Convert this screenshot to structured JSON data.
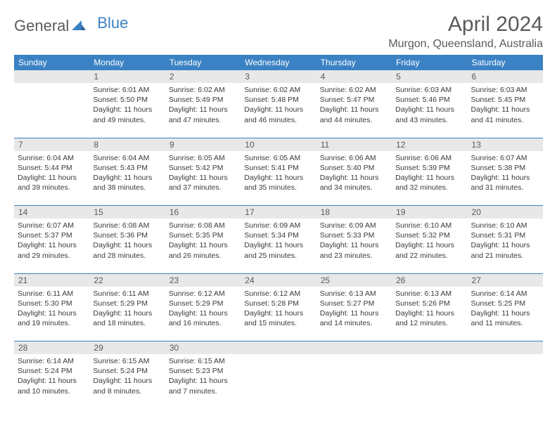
{
  "logo": {
    "general": "General",
    "blue": "Blue",
    "iconColor": "#3b82c4"
  },
  "title": "April 2024",
  "location": "Murgon, Queensland, Australia",
  "colors": {
    "headerBg": "#3b82c4",
    "headerText": "#ffffff",
    "dayNumBg": "#e8e8e8",
    "dayNumText": "#5a5a5a",
    "cellText": "#3a3a3a",
    "borderColor": "#3b82c4"
  },
  "dayHeaders": [
    "Sunday",
    "Monday",
    "Tuesday",
    "Wednesday",
    "Thursday",
    "Friday",
    "Saturday"
  ],
  "weeks": [
    {
      "nums": [
        "",
        "1",
        "2",
        "3",
        "4",
        "5",
        "6"
      ],
      "cells": [
        null,
        {
          "sunrise": "Sunrise: 6:01 AM",
          "sunset": "Sunset: 5:50 PM",
          "day1": "Daylight: 11 hours",
          "day2": "and 49 minutes."
        },
        {
          "sunrise": "Sunrise: 6:02 AM",
          "sunset": "Sunset: 5:49 PM",
          "day1": "Daylight: 11 hours",
          "day2": "and 47 minutes."
        },
        {
          "sunrise": "Sunrise: 6:02 AM",
          "sunset": "Sunset: 5:48 PM",
          "day1": "Daylight: 11 hours",
          "day2": "and 46 minutes."
        },
        {
          "sunrise": "Sunrise: 6:02 AM",
          "sunset": "Sunset: 5:47 PM",
          "day1": "Daylight: 11 hours",
          "day2": "and 44 minutes."
        },
        {
          "sunrise": "Sunrise: 6:03 AM",
          "sunset": "Sunset: 5:46 PM",
          "day1": "Daylight: 11 hours",
          "day2": "and 43 minutes."
        },
        {
          "sunrise": "Sunrise: 6:03 AM",
          "sunset": "Sunset: 5:45 PM",
          "day1": "Daylight: 11 hours",
          "day2": "and 41 minutes."
        }
      ]
    },
    {
      "nums": [
        "7",
        "8",
        "9",
        "10",
        "11",
        "12",
        "13"
      ],
      "cells": [
        {
          "sunrise": "Sunrise: 6:04 AM",
          "sunset": "Sunset: 5:44 PM",
          "day1": "Daylight: 11 hours",
          "day2": "and 39 minutes."
        },
        {
          "sunrise": "Sunrise: 6:04 AM",
          "sunset": "Sunset: 5:43 PM",
          "day1": "Daylight: 11 hours",
          "day2": "and 38 minutes."
        },
        {
          "sunrise": "Sunrise: 6:05 AM",
          "sunset": "Sunset: 5:42 PM",
          "day1": "Daylight: 11 hours",
          "day2": "and 37 minutes."
        },
        {
          "sunrise": "Sunrise: 6:05 AM",
          "sunset": "Sunset: 5:41 PM",
          "day1": "Daylight: 11 hours",
          "day2": "and 35 minutes."
        },
        {
          "sunrise": "Sunrise: 6:06 AM",
          "sunset": "Sunset: 5:40 PM",
          "day1": "Daylight: 11 hours",
          "day2": "and 34 minutes."
        },
        {
          "sunrise": "Sunrise: 6:06 AM",
          "sunset": "Sunset: 5:39 PM",
          "day1": "Daylight: 11 hours",
          "day2": "and 32 minutes."
        },
        {
          "sunrise": "Sunrise: 6:07 AM",
          "sunset": "Sunset: 5:38 PM",
          "day1": "Daylight: 11 hours",
          "day2": "and 31 minutes."
        }
      ]
    },
    {
      "nums": [
        "14",
        "15",
        "16",
        "17",
        "18",
        "19",
        "20"
      ],
      "cells": [
        {
          "sunrise": "Sunrise: 6:07 AM",
          "sunset": "Sunset: 5:37 PM",
          "day1": "Daylight: 11 hours",
          "day2": "and 29 minutes."
        },
        {
          "sunrise": "Sunrise: 6:08 AM",
          "sunset": "Sunset: 5:36 PM",
          "day1": "Daylight: 11 hours",
          "day2": "and 28 minutes."
        },
        {
          "sunrise": "Sunrise: 6:08 AM",
          "sunset": "Sunset: 5:35 PM",
          "day1": "Daylight: 11 hours",
          "day2": "and 26 minutes."
        },
        {
          "sunrise": "Sunrise: 6:09 AM",
          "sunset": "Sunset: 5:34 PM",
          "day1": "Daylight: 11 hours",
          "day2": "and 25 minutes."
        },
        {
          "sunrise": "Sunrise: 6:09 AM",
          "sunset": "Sunset: 5:33 PM",
          "day1": "Daylight: 11 hours",
          "day2": "and 23 minutes."
        },
        {
          "sunrise": "Sunrise: 6:10 AM",
          "sunset": "Sunset: 5:32 PM",
          "day1": "Daylight: 11 hours",
          "day2": "and 22 minutes."
        },
        {
          "sunrise": "Sunrise: 6:10 AM",
          "sunset": "Sunset: 5:31 PM",
          "day1": "Daylight: 11 hours",
          "day2": "and 21 minutes."
        }
      ]
    },
    {
      "nums": [
        "21",
        "22",
        "23",
        "24",
        "25",
        "26",
        "27"
      ],
      "cells": [
        {
          "sunrise": "Sunrise: 6:11 AM",
          "sunset": "Sunset: 5:30 PM",
          "day1": "Daylight: 11 hours",
          "day2": "and 19 minutes."
        },
        {
          "sunrise": "Sunrise: 6:11 AM",
          "sunset": "Sunset: 5:29 PM",
          "day1": "Daylight: 11 hours",
          "day2": "and 18 minutes."
        },
        {
          "sunrise": "Sunrise: 6:12 AM",
          "sunset": "Sunset: 5:29 PM",
          "day1": "Daylight: 11 hours",
          "day2": "and 16 minutes."
        },
        {
          "sunrise": "Sunrise: 6:12 AM",
          "sunset": "Sunset: 5:28 PM",
          "day1": "Daylight: 11 hours",
          "day2": "and 15 minutes."
        },
        {
          "sunrise": "Sunrise: 6:13 AM",
          "sunset": "Sunset: 5:27 PM",
          "day1": "Daylight: 11 hours",
          "day2": "and 14 minutes."
        },
        {
          "sunrise": "Sunrise: 6:13 AM",
          "sunset": "Sunset: 5:26 PM",
          "day1": "Daylight: 11 hours",
          "day2": "and 12 minutes."
        },
        {
          "sunrise": "Sunrise: 6:14 AM",
          "sunset": "Sunset: 5:25 PM",
          "day1": "Daylight: 11 hours",
          "day2": "and 11 minutes."
        }
      ]
    },
    {
      "nums": [
        "28",
        "29",
        "30",
        "",
        "",
        "",
        ""
      ],
      "cells": [
        {
          "sunrise": "Sunrise: 6:14 AM",
          "sunset": "Sunset: 5:24 PM",
          "day1": "Daylight: 11 hours",
          "day2": "and 10 minutes."
        },
        {
          "sunrise": "Sunrise: 6:15 AM",
          "sunset": "Sunset: 5:24 PM",
          "day1": "Daylight: 11 hours",
          "day2": "and 8 minutes."
        },
        {
          "sunrise": "Sunrise: 6:15 AM",
          "sunset": "Sunset: 5:23 PM",
          "day1": "Daylight: 11 hours",
          "day2": "and 7 minutes."
        },
        null,
        null,
        null,
        null
      ]
    }
  ]
}
